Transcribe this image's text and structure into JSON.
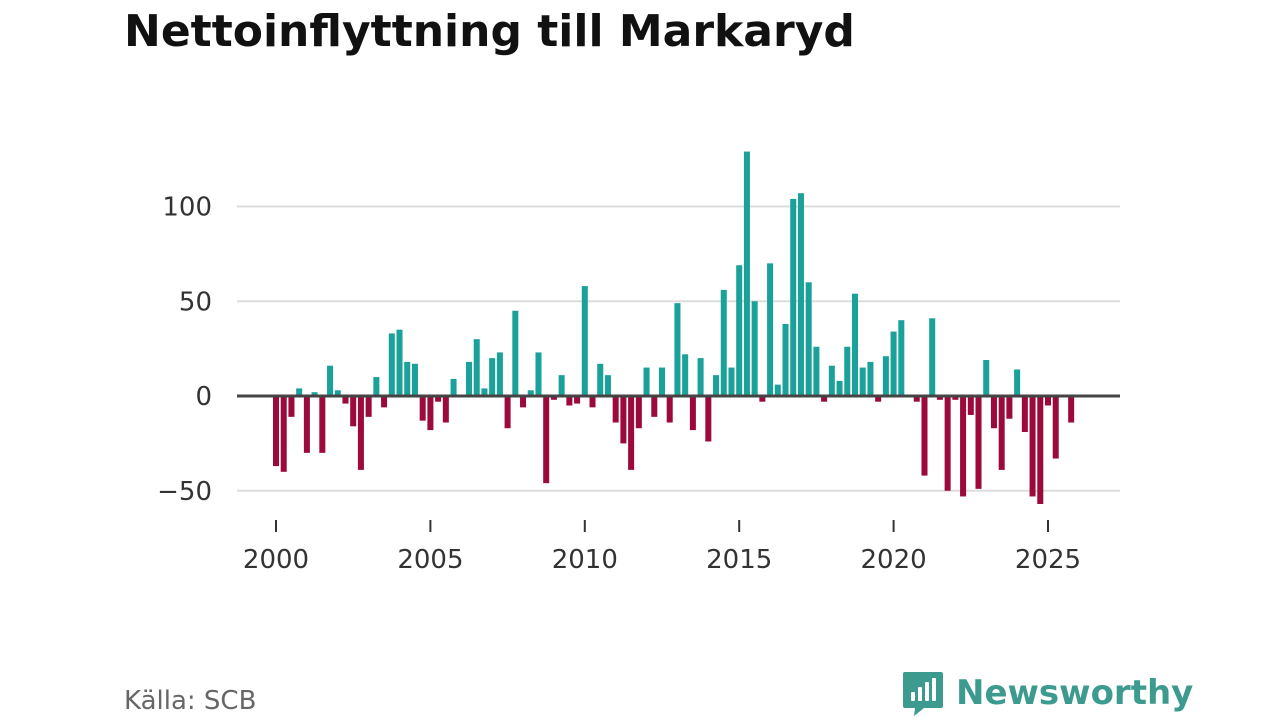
{
  "title": "Nettoinflyttning till Markaryd",
  "source": "Källa: SCB",
  "brand": {
    "name": "Newsworthy",
    "icon": "newsworthy-logo-icon",
    "color": "#3d9a8f"
  },
  "colors": {
    "positive": "#1aa19a",
    "negative": "#9c0a3c",
    "grid": "#dddddd",
    "baseline": "#444444"
  },
  "chart_data": {
    "type": "bar",
    "title": "Nettoinflyttning till Markaryd",
    "xlabel": "",
    "ylabel": "",
    "frequency": "quarterly",
    "start": 2000.0,
    "step": 0.25,
    "xlim": [
      1998.8,
      2027.3
    ],
    "ylim": [
      -65,
      140
    ],
    "yticks": [
      -50,
      0,
      50,
      100
    ],
    "ytick_labels": [
      "−50",
      "0",
      "50",
      "100"
    ],
    "xticks": [
      2000,
      2005,
      2010,
      2015,
      2020,
      2025
    ],
    "xtick_labels": [
      "2000",
      "2005",
      "2010",
      "2015",
      "2020",
      "2025"
    ],
    "values": [
      -37,
      -40,
      -11,
      4,
      -30,
      2,
      -30,
      16,
      3,
      -4,
      -16,
      -39,
      -11,
      10,
      -6,
      33,
      35,
      18,
      17,
      -13,
      -18,
      -3,
      -14,
      9,
      0,
      18,
      30,
      4,
      20,
      23,
      -17,
      45,
      -6,
      3,
      23,
      -46,
      -2,
      11,
      -5,
      -4,
      58,
      -6,
      17,
      11,
      -14,
      -25,
      -39,
      -17,
      15,
      -11,
      15,
      -14,
      49,
      22,
      -18,
      20,
      -24,
      11,
      56,
      15,
      69,
      129,
      50,
      -3,
      70,
      6,
      38,
      104,
      107,
      60,
      26,
      -3,
      16,
      8,
      26,
      54,
      15,
      18,
      -3,
      21,
      34,
      40,
      0,
      -3,
      -42,
      41,
      -2,
      -50,
      -2,
      -53,
      -10,
      -49,
      19,
      -17,
      -39,
      -12,
      14,
      -19,
      -53,
      -57,
      -5,
      -33,
      0,
      -14
    ]
  }
}
